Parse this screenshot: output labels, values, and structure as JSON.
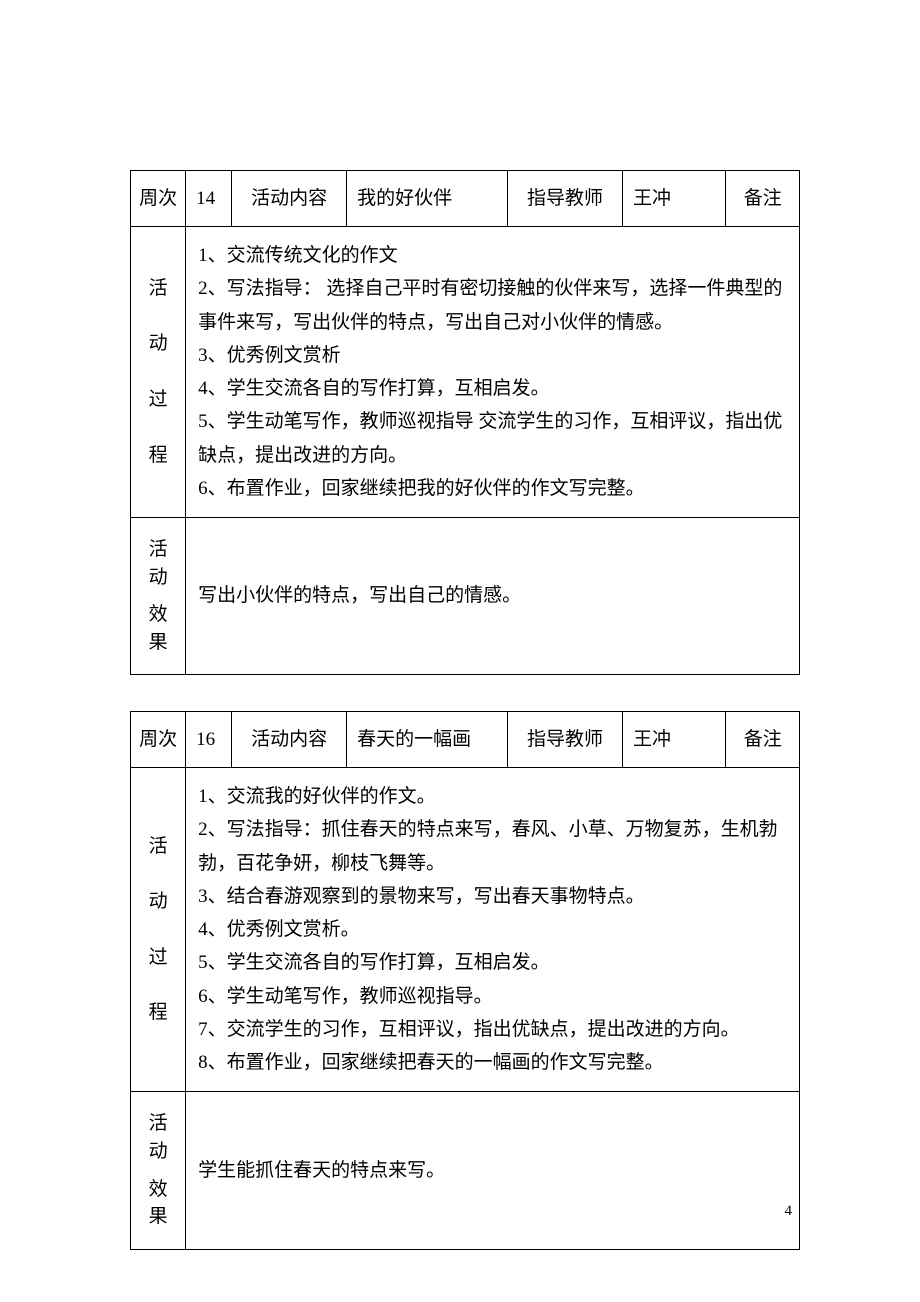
{
  "labels": {
    "week": "周次",
    "activity_content": "活动内容",
    "instructor": "指导教师",
    "remark": "备注",
    "process_chars": [
      "活",
      "动",
      "过",
      "程"
    ],
    "effect_chars": [
      "活 动",
      "效 果"
    ]
  },
  "tables": [
    {
      "week_num": "14",
      "activity_title": "我的好伙伴",
      "teacher": "王冲",
      "remark_val": "",
      "process": "1、交流传统文化的作文\n2、写法指导：  选择自己平时有密切接触的伙伴来写，选择一件典型的事件来写，写出伙伴的特点，写出自己对小伙伴的情感。\n3、优秀例文赏析\n4、学生交流各自的写作打算，互相启发。\n5、学生动笔写作，教师巡视指导 交流学生的习作，互相评议，指出优缺点，提出改进的方向。\n6、布置作业，回家继续把我的好伙伴的作文写完整。",
      "effect": "写出小伙伴的特点，写出自己的情感。"
    },
    {
      "week_num": "16",
      "activity_title": "春天的一幅画",
      "teacher": "王冲",
      "remark_val": "",
      "process": "1、交流我的好伙伴的作文。\n2、写法指导：抓住春天的特点来写，春风、小草、万物复苏，生机勃勃，百花争妍，柳枝飞舞等。\n3、结合春游观察到的景物来写，写出春天事物特点。\n4、优秀例文赏析。\n5、学生交流各自的写作打算，互相启发。\n6、学生动笔写作，教师巡视指导。\n7、交流学生的习作，互相评议，指出优缺点，提出改进的方向。\n8、布置作业，回家继续把春天的一幅画的作文写完整。",
      "effect": "学生能抓住春天的特点来写。"
    }
  ],
  "page_number": "4",
  "col_widths": {
    "c0": "48px",
    "c1": "40px",
    "c2": "100px",
    "c3": "140px",
    "c4": "100px",
    "c5": "90px",
    "c6": "64px"
  }
}
